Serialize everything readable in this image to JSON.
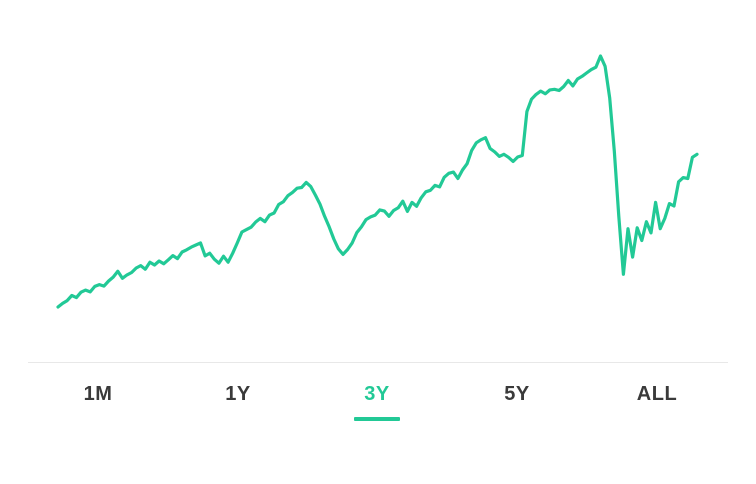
{
  "accent_color": "#22c996",
  "chart_data": {
    "type": "line",
    "title": "",
    "xlabel": "",
    "ylabel": "",
    "grid": false,
    "series": [
      {
        "color": "#22c996",
        "values": [
          0.0,
          1.2,
          2.1,
          3.8,
          3.1,
          4.9,
          5.6,
          5.0,
          6.8,
          7.4,
          6.9,
          8.6,
          9.9,
          11.8,
          9.5,
          10.6,
          11.4,
          12.9,
          13.7,
          12.5,
          14.8,
          13.9,
          15.2,
          14.3,
          15.6,
          17.0,
          16.0,
          18.2,
          18.9,
          19.8,
          20.5,
          21.2,
          16.9,
          17.8,
          15.8,
          14.5,
          16.8,
          14.8,
          17.8,
          21.2,
          24.8,
          25.6,
          26.4,
          28.1,
          29.3,
          28.2,
          30.4,
          31.1,
          33.9,
          34.8,
          36.8,
          37.9,
          39.3,
          39.5,
          41.2,
          39.8,
          37.0,
          34.0,
          30.0,
          26.5,
          22.5,
          19.2,
          17.4,
          19.0,
          21.2,
          24.6,
          26.5,
          28.9,
          29.8,
          30.4,
          32.1,
          31.7,
          30.0,
          31.9,
          32.8,
          35.0,
          31.6,
          34.6,
          33.3,
          36.1,
          38.1,
          38.6,
          40.2,
          39.7,
          42.9,
          44.2,
          44.6,
          42.5,
          45.3,
          47.4,
          51.8,
          54.3,
          55.3,
          56.0,
          52.4,
          51.3,
          49.8,
          50.5,
          49.5,
          48.1,
          49.6,
          50.1,
          64.6,
          68.7,
          70.3,
          71.4,
          70.5,
          71.8,
          72.0,
          71.6,
          72.9,
          74.9,
          73.1,
          75.4,
          76.3,
          77.4,
          78.5,
          79.3,
          83.0,
          79.6,
          69.1,
          51.6,
          30.0,
          10.8,
          25.9,
          16.5,
          26.2,
          22.0,
          28.2,
          24.5,
          34.6,
          25.9,
          29.3,
          34.2,
          33.4,
          41.4,
          42.8,
          42.5,
          49.5,
          50.5
        ]
      }
    ]
  },
  "range_tabs": [
    {
      "label": "1M"
    },
    {
      "label": "1Y"
    },
    {
      "label": "3Y"
    },
    {
      "label": "5Y"
    },
    {
      "label": "ALL"
    }
  ],
  "selected_range": "3Y"
}
